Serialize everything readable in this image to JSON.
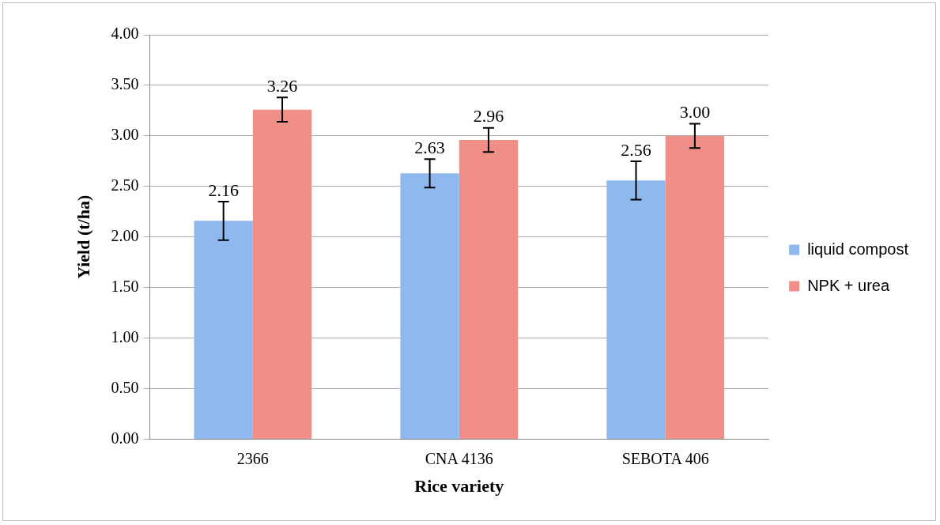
{
  "chart_data": {
    "type": "bar",
    "xlabel": "Rice variety",
    "ylabel": "Yield (t/ha)",
    "categories": [
      "2366",
      "CNA 4136",
      "SEBOTA 406"
    ],
    "series": [
      {
        "name": "liquid compost",
        "color": "#8fb8ee",
        "values": [
          2.16,
          2.63,
          2.56
        ],
        "value_labels": [
          "2.16",
          "2.63",
          "2.56"
        ],
        "errors": [
          0.19,
          0.14,
          0.19
        ]
      },
      {
        "name": "NPK + urea",
        "color": "#ef8f88",
        "values": [
          3.26,
          2.96,
          3.0
        ],
        "value_labels": [
          "3.26",
          "2.96",
          "3.00"
        ],
        "errors": [
          0.12,
          0.12,
          0.12
        ]
      }
    ],
    "ylim": [
      0,
      4
    ],
    "yticks": [
      {
        "value": 0,
        "label": "0.00"
      },
      {
        "value": 0.5,
        "label": "0.50"
      },
      {
        "value": 1,
        "label": "1.00"
      },
      {
        "value": 1.5,
        "label": "1.50"
      },
      {
        "value": 2,
        "label": "2.00"
      },
      {
        "value": 2.5,
        "label": "2.50"
      },
      {
        "value": 3,
        "label": "3.00"
      },
      {
        "value": 3.5,
        "label": "3.50"
      },
      {
        "value": 4,
        "label": "4.00"
      }
    ],
    "grid": "y",
    "legend": "right"
  }
}
